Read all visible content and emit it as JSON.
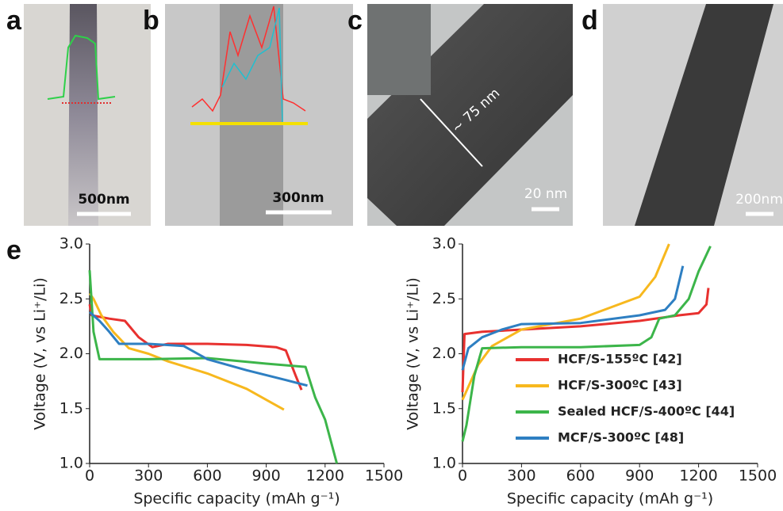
{
  "panels": [
    {
      "label": "a",
      "scale_bar": "500nm"
    },
    {
      "label": "b",
      "scale_bar": "300nm"
    },
    {
      "label": "c",
      "scale_bar": "20 nm",
      "annotation": "~ 75 nm"
    },
    {
      "label": "d",
      "scale_bar": "200nm"
    }
  ],
  "panel_e": {
    "label": "e"
  },
  "chart_data": [
    {
      "type": "line",
      "x_label": "Specific capacity (mAh g⁻¹)",
      "y_label": "Voltage (V, vs Li⁺/Li)",
      "xlim": [
        0,
        1500
      ],
      "xticks": [
        0,
        300,
        600,
        900,
        1200,
        1500
      ],
      "ylim": [
        1,
        3
      ],
      "yticks": [
        {
          "value": 1,
          "label": "1.0"
        },
        1.5,
        {
          "value": 2,
          "label": "2.0"
        },
        2.5,
        {
          "value": 3,
          "label": "3.0"
        }
      ],
      "series": [
        {
          "color": "#e8312f",
          "x": [
            0,
            10,
            100,
            180,
            250,
            320,
            400,
            600,
            800,
            950,
            1000,
            1050,
            1080
          ],
          "values": [
            2.45,
            2.35,
            2.32,
            2.3,
            2.15,
            2.06,
            2.09,
            2.09,
            2.08,
            2.06,
            2.03,
            1.8,
            1.67
          ]
        },
        {
          "color": "#f7b81e",
          "x": [
            0,
            20,
            60,
            120,
            200,
            300,
            400,
            600,
            800,
            990
          ],
          "values": [
            2.55,
            2.5,
            2.35,
            2.2,
            2.05,
            2.0,
            1.93,
            1.82,
            1.68,
            1.49
          ]
        },
        {
          "color": "#3cb54a",
          "x": [
            0,
            20,
            50,
            300,
            600,
            900,
            1100,
            1150,
            1200,
            1260
          ],
          "values": [
            2.76,
            2.2,
            1.95,
            1.95,
            1.96,
            1.91,
            1.88,
            1.6,
            1.4,
            1.0
          ]
        },
        {
          "color": "#2e7fc2",
          "x": [
            0,
            50,
            100,
            150,
            300,
            480,
            600,
            800,
            1000,
            1110
          ],
          "values": [
            2.38,
            2.3,
            2.2,
            2.09,
            2.09,
            2.07,
            1.95,
            1.85,
            1.76,
            1.71
          ]
        }
      ]
    },
    {
      "type": "line",
      "x_label": "Specific capacity (mAh g⁻¹)",
      "y_label": "Voltage (V, vs Li⁺/Li)",
      "xlim": [
        0,
        1500
      ],
      "xticks": [
        0,
        300,
        600,
        900,
        1200,
        1500
      ],
      "ylim": [
        1,
        3
      ],
      "yticks": [
        {
          "value": 1,
          "label": "1.0"
        },
        1.5,
        {
          "value": 2,
          "label": "2.0"
        },
        2.5,
        {
          "value": 3,
          "label": "3.0"
        }
      ],
      "legend": "lower right",
      "series": [
        {
          "name": "HCF/S-155ºC [42]",
          "color": "#e8312f",
          "x": [
            0,
            10,
            100,
            300,
            600,
            900,
            1100,
            1200,
            1240,
            1250
          ],
          "values": [
            1.65,
            2.18,
            2.2,
            2.22,
            2.25,
            2.3,
            2.35,
            2.37,
            2.45,
            2.6
          ]
        },
        {
          "name": "HCF/S-300ºC [43]",
          "color": "#f7b81e",
          "x": [
            0,
            30,
            80,
            150,
            300,
            600,
            900,
            980,
            1050
          ],
          "values": [
            1.58,
            1.7,
            1.9,
            2.07,
            2.22,
            2.32,
            2.52,
            2.7,
            3.0
          ]
        },
        {
          "name": "Sealed HCF/S-400ºC [44]",
          "color": "#3cb54a",
          "x": [
            0,
            20,
            60,
            100,
            300,
            600,
            900,
            960,
            1000,
            1080,
            1150,
            1200,
            1260
          ],
          "values": [
            1.2,
            1.35,
            1.8,
            2.05,
            2.06,
            2.06,
            2.08,
            2.15,
            2.32,
            2.35,
            2.5,
            2.75,
            2.98
          ]
        },
        {
          "name": "MCF/S-300ºC [48]",
          "color": "#2e7fc2",
          "x": [
            0,
            30,
            100,
            200,
            300,
            600,
            900,
            1030,
            1080,
            1100,
            1120
          ],
          "values": [
            1.85,
            2.05,
            2.15,
            2.22,
            2.27,
            2.28,
            2.35,
            2.4,
            2.5,
            2.65,
            2.8
          ]
        }
      ]
    }
  ]
}
